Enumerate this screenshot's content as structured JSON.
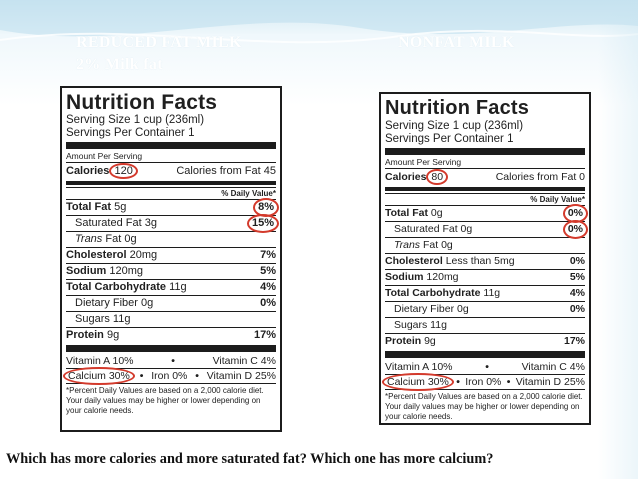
{
  "headings": {
    "left_line1": "REDUCED FAT MILK",
    "left_line2": "2% Milk fat",
    "right": "NONFAT MILK"
  },
  "labels": [
    {
      "title": "Nutrition Facts",
      "serving_size": "Serving Size 1 cup (236ml)",
      "servings": "Servings Per Container 1",
      "amount_per_serving": "Amount Per Serving",
      "calories_label": "Calories",
      "calories_value": "120",
      "calories_from_fat": "Calories from Fat 45",
      "dv_header": "% Daily Value*",
      "total_fat": "Total Fat",
      "total_fat_amt": "5g",
      "total_fat_pct": "8%",
      "sat_fat": "Saturated Fat",
      "sat_fat_amt": "3g",
      "sat_fat_pct": "15%",
      "trans_fat": "Trans",
      "trans_fat_rest": "Fat 0g",
      "cholesterol": "Cholesterol",
      "cholesterol_amt": "20mg",
      "cholesterol_pct": "7%",
      "sodium": "Sodium",
      "sodium_amt": "120mg",
      "sodium_pct": "5%",
      "carb": "Total Carbohydrate",
      "carb_amt": "11g",
      "carb_pct": "4%",
      "fiber": "Dietary Fiber 0g",
      "fiber_pct": "0%",
      "sugars": "Sugars 11g",
      "protein": "Protein",
      "protein_amt": "9g",
      "protein_pct": "17%",
      "vitamin_a": "Vitamin A 10%",
      "vitamin_c": "Vitamin C 4%",
      "calcium": "Calcium 30%",
      "iron": "Iron 0%",
      "vitamin_d": "Vitamin D 25%",
      "footnote": "*Percent Daily Values are based on a 2,000 calorie diet. Your daily values may be higher or lower depending on your calorie needs."
    },
    {
      "title": "Nutrition Facts",
      "serving_size": "Serving Size 1 cup (236ml)",
      "servings": "Servings Per Container 1",
      "amount_per_serving": "Amount Per Serving",
      "calories_label": "Calories",
      "calories_value": "80",
      "calories_from_fat": "Calories from Fat 0",
      "dv_header": "% Daily Value*",
      "total_fat": "Total Fat",
      "total_fat_amt": "0g",
      "total_fat_pct": "0%",
      "sat_fat": "Saturated Fat",
      "sat_fat_amt": "0g",
      "sat_fat_pct": "0%",
      "trans_fat": "Trans",
      "trans_fat_rest": "Fat 0g",
      "cholesterol": "Cholesterol",
      "cholesterol_amt": "Less than 5mg",
      "cholesterol_pct": "0%",
      "sodium": "Sodium",
      "sodium_amt": "120mg",
      "sodium_pct": "5%",
      "carb": "Total Carbohydrate",
      "carb_amt": "11g",
      "carb_pct": "4%",
      "fiber": "Dietary Fiber 0g",
      "fiber_pct": "0%",
      "sugars": "Sugars 11g",
      "protein": "Protein",
      "protein_amt": "9g",
      "protein_pct": "17%",
      "vitamin_a": "Vitamin A 10%",
      "vitamin_c": "Vitamin C 4%",
      "calcium": "Calcium 30%",
      "iron": "Iron 0%",
      "vitamin_d": "Vitamin D 25%",
      "footnote": "*Percent Daily Values are based on a 2,000 calorie diet. Your daily values may be higher or lower depending on your calorie needs."
    }
  ],
  "question": "Which has more calories and more saturated fat? Which one has more calcium?",
  "colors": {
    "highlight_circle": "#d33a2c",
    "slide_band": "#cfe7f2",
    "label_ink": "#1c1c1c"
  }
}
